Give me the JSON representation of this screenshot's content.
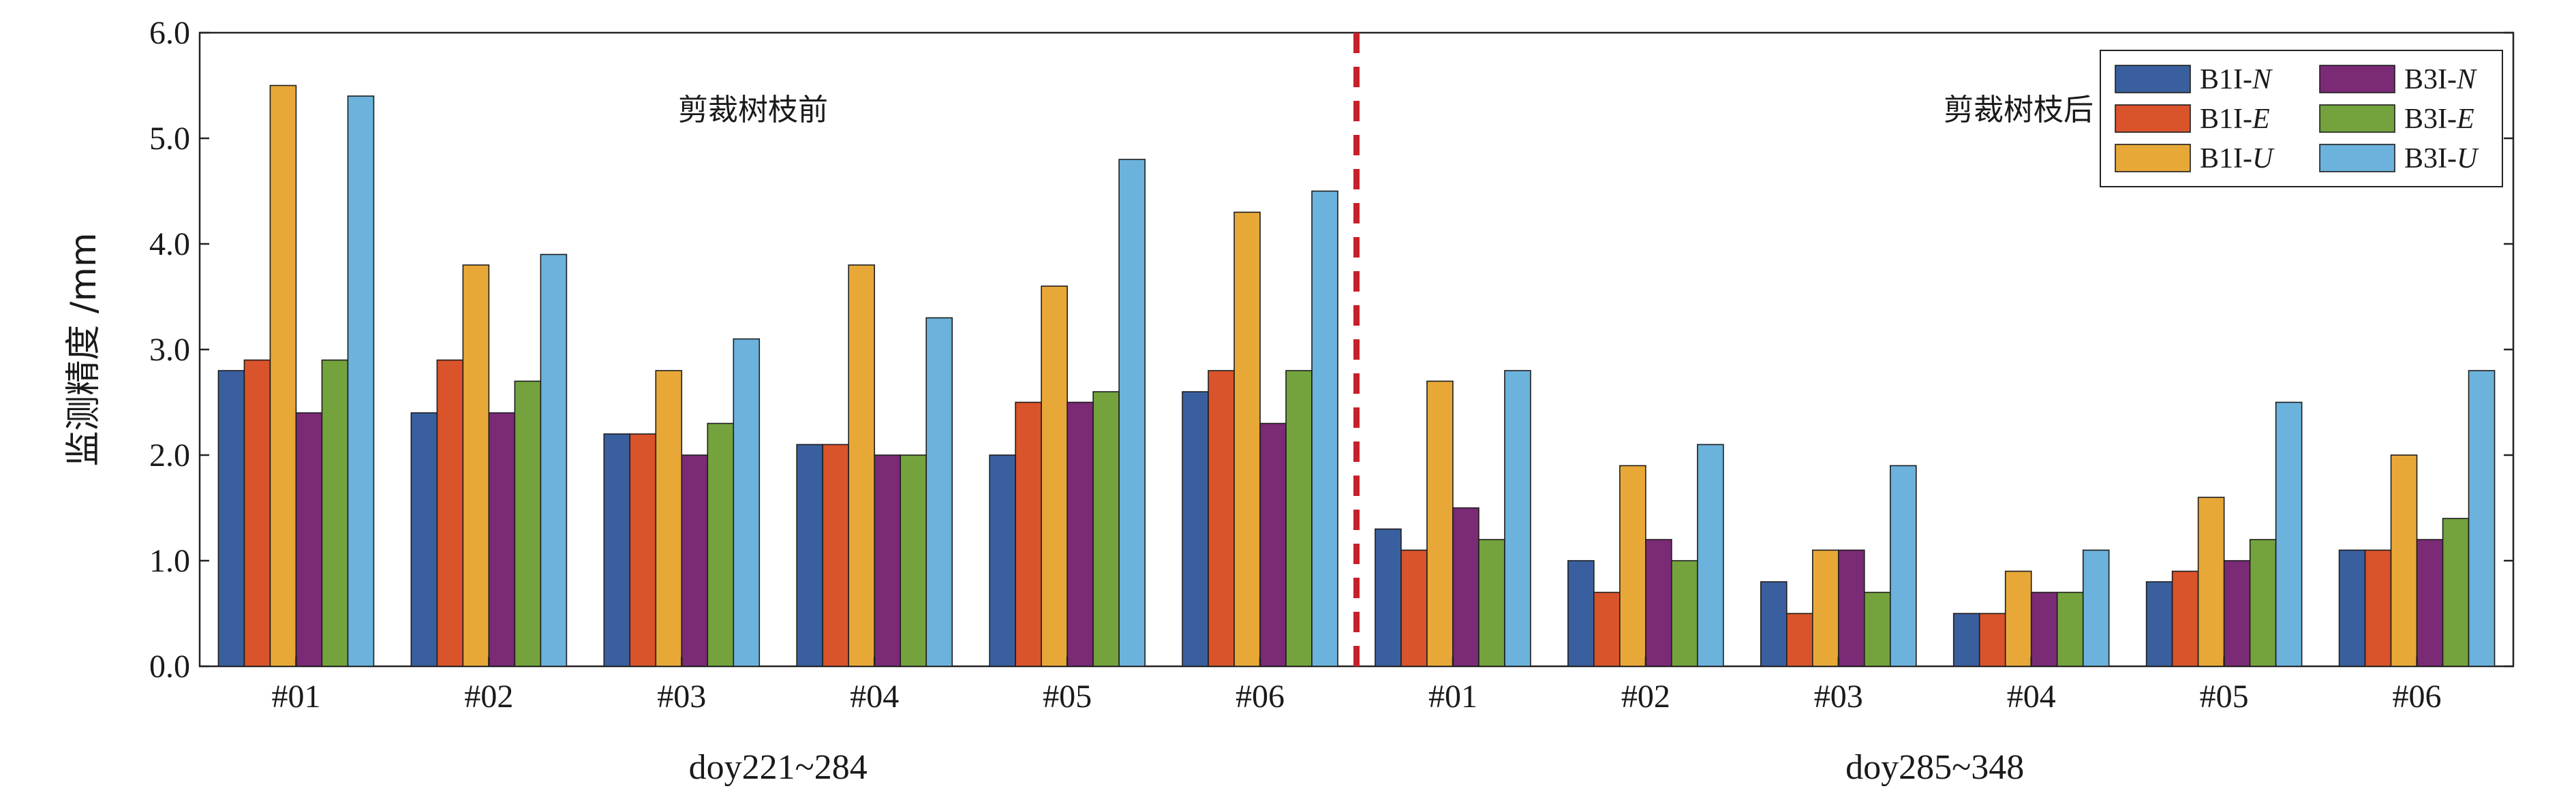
{
  "chart_data": {
    "type": "bar",
    "ylabel": "监测精度 /mm",
    "ylim": [
      0,
      6.0
    ],
    "yticks": [
      "0.0",
      "1.0",
      "2.0",
      "3.0",
      "4.0",
      "5.0",
      "6.0"
    ],
    "grid": false,
    "legend_placement": "top-right",
    "groups": [
      {
        "period": "doy221~284",
        "annotation": "剪裁树枝前",
        "categories": [
          "#01",
          "#02",
          "#03",
          "#04",
          "#05",
          "#06"
        ]
      },
      {
        "period": "doy285~348",
        "annotation": "剪裁树枝后",
        "categories": [
          "#01",
          "#02",
          "#03",
          "#04",
          "#05",
          "#06"
        ]
      }
    ],
    "series": [
      {
        "name_prefix": "B1I-",
        "name_suffix": "N",
        "color": "#3a5f9e",
        "values": [
          2.8,
          2.4,
          2.2,
          2.1,
          2.0,
          2.6,
          1.3,
          1.0,
          0.8,
          0.5,
          0.8,
          1.1
        ]
      },
      {
        "name_prefix": "B1I-",
        "name_suffix": "E",
        "color": "#d9532b",
        "values": [
          2.9,
          2.9,
          2.2,
          2.1,
          2.5,
          2.8,
          1.1,
          0.7,
          0.5,
          0.5,
          0.9,
          1.1
        ]
      },
      {
        "name_prefix": "B1I-",
        "name_suffix": "U",
        "color": "#e8a838",
        "values": [
          5.5,
          3.8,
          2.8,
          3.8,
          3.6,
          4.3,
          2.7,
          1.9,
          1.1,
          0.9,
          1.6,
          2.0
        ]
      },
      {
        "name_prefix": "B3I-",
        "name_suffix": "N",
        "color": "#7b2a75",
        "values": [
          2.4,
          2.4,
          2.0,
          2.0,
          2.5,
          2.3,
          1.5,
          1.2,
          1.1,
          0.7,
          1.0,
          1.2
        ]
      },
      {
        "name_prefix": "B3I-",
        "name_suffix": "E",
        "color": "#74a33e",
        "values": [
          2.9,
          2.7,
          2.3,
          2.0,
          2.6,
          2.8,
          1.2,
          1.0,
          0.7,
          0.7,
          1.2,
          1.4
        ]
      },
      {
        "name_prefix": "B3I-",
        "name_suffix": "U",
        "color": "#6bb2dc",
        "values": [
          5.4,
          3.9,
          3.1,
          3.3,
          4.8,
          4.5,
          2.8,
          2.1,
          1.9,
          1.1,
          2.5,
          2.8
        ]
      }
    ],
    "divider_color": "#c8202a"
  }
}
